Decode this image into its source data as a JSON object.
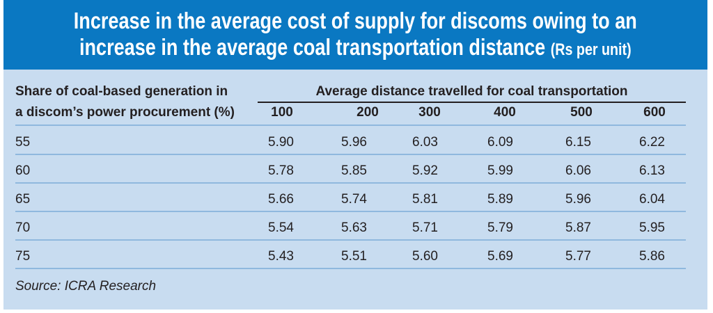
{
  "title": {
    "line1": "Increase in the average cost of supply for discoms owing to an",
    "line2": "increase in the average coal transportation distance",
    "unit": "(Rs per unit)"
  },
  "colors": {
    "header": "#0a78c2",
    "panel": "#c8dcf0",
    "rule": "#8fb8de"
  },
  "chart_data": {
    "type": "table",
    "row_header": {
      "line1": "Share of coal-based generation in",
      "line2": "a discom’s power procurement (%)"
    },
    "column_group": "Average distance travelled for coal transportation",
    "columns": [
      "100",
      "200",
      "300",
      "400",
      "500",
      "600"
    ],
    "rows": [
      {
        "label": "55",
        "values": [
          "5.90",
          "5.96",
          "6.03",
          "6.09",
          "6.15",
          "6.22"
        ]
      },
      {
        "label": "60",
        "values": [
          "5.78",
          "5.85",
          "5.92",
          "5.99",
          "6.06",
          "6.13"
        ]
      },
      {
        "label": "65",
        "values": [
          "5.66",
          "5.74",
          "5.81",
          "5.89",
          "5.96",
          "6.04"
        ]
      },
      {
        "label": "70",
        "values": [
          "5.54",
          "5.63",
          "5.71",
          "5.79",
          "5.87",
          "5.95"
        ]
      },
      {
        "label": "75",
        "values": [
          "5.43",
          "5.51",
          "5.60",
          "5.69",
          "5.77",
          "5.86"
        ]
      }
    ]
  },
  "source": "Source: ICRA Research"
}
